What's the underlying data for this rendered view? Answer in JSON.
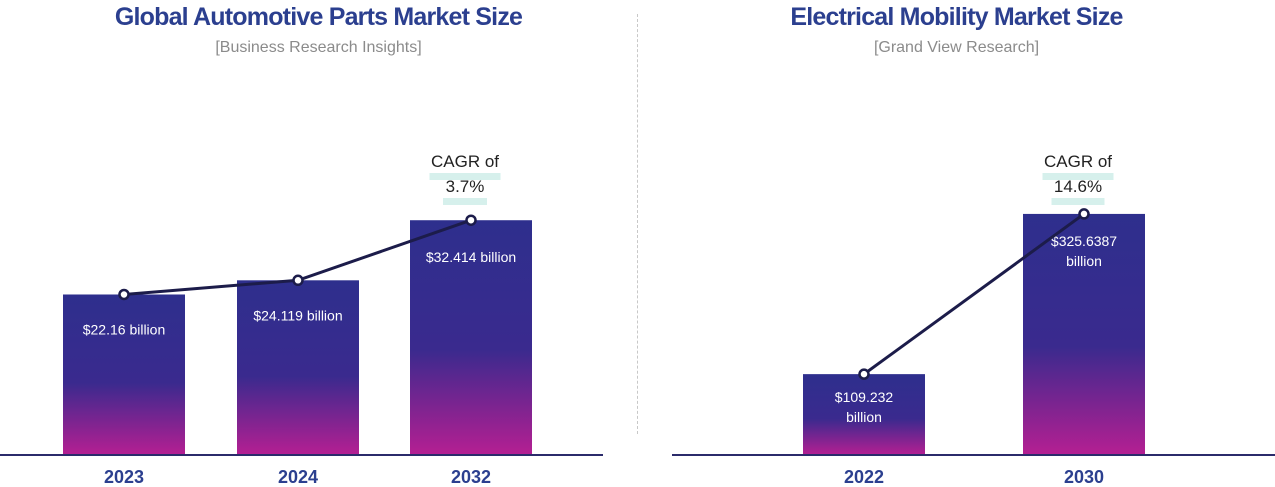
{
  "chart_data": [
    {
      "type": "bar",
      "title": "Global Automotive Parts Market Size",
      "subtitle": "[Business Research Insights]",
      "categories": [
        "2023",
        "2024",
        "2032"
      ],
      "values": [
        22.16,
        24.119,
        32.414
      ],
      "value_labels": [
        "$22.16 billion",
        "$24.119 billion",
        "$32.414 billion"
      ],
      "value_unit": "billion USD",
      "annotation": [
        "CAGR of",
        "3.7%"
      ],
      "trend_line": true,
      "ylim": [
        0,
        37
      ]
    },
    {
      "type": "bar",
      "title": "Electrical Mobility Market Size",
      "subtitle": "[Grand View Research]",
      "categories": [
        "2022",
        "2030"
      ],
      "values": [
        109.232,
        325.6387
      ],
      "value_labels": [
        "$109.232 billion",
        "$325.6387 billion"
      ],
      "value_unit": "billion USD",
      "annotation": [
        "CAGR of",
        "14.6%"
      ],
      "trend_line": true,
      "ylim": [
        0,
        362
      ]
    }
  ],
  "colors": {
    "title": "#2b3f8f",
    "bar_top": "#2e2f8d",
    "bar_mid": "#3a2a8e",
    "bar_bottom": "#b51f92",
    "line": "#1c1c4a",
    "axis": "#2b2b6b",
    "highlight": "#d6f0ec"
  }
}
